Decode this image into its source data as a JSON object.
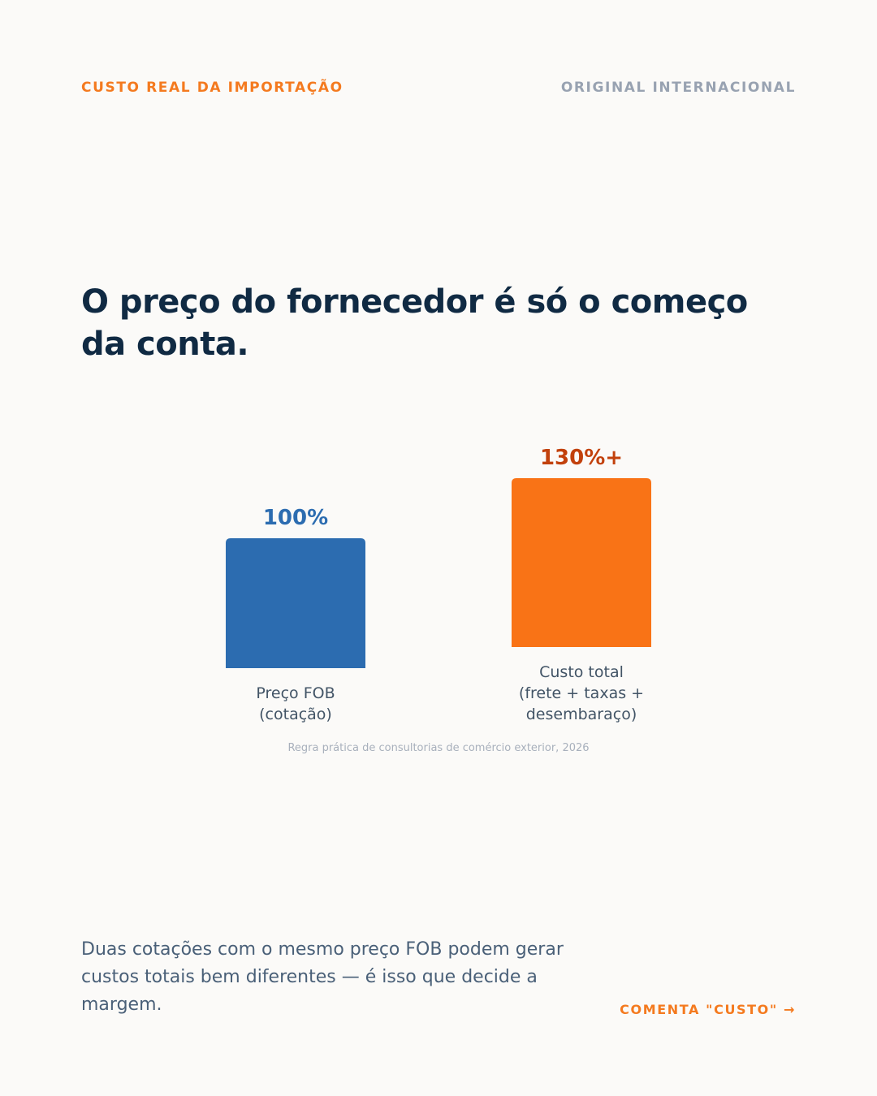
{
  "header": {
    "kicker_left": "CUSTO REAL DA IMPORTAÇÃO",
    "kicker_right": "ORIGINAL INTERNACIONAL"
  },
  "headline": "O preço do fornecedor é só o começo da conta.",
  "chart_data": {
    "type": "bar",
    "categories": [
      [
        "Preço FOB",
        "(cotação)"
      ],
      [
        "Custo total",
        "(frete + taxas +",
        "desembaraço)"
      ]
    ],
    "values": [
      100,
      130
    ],
    "value_labels": [
      "100%",
      "130%+"
    ],
    "colors": [
      "#2c6cb0",
      "#f97316"
    ],
    "value_label_colors": [
      "#2c6cb0",
      "#c2410c"
    ],
    "source": "Regra prática de consultorias de comércio exterior, 2026"
  },
  "footer": {
    "body": "Duas cotações com o mesmo preço FOB podem gerar custos totais bem diferentes — é isso que decide a margem.",
    "cta": "COMENTA \"CUSTO\" →"
  }
}
